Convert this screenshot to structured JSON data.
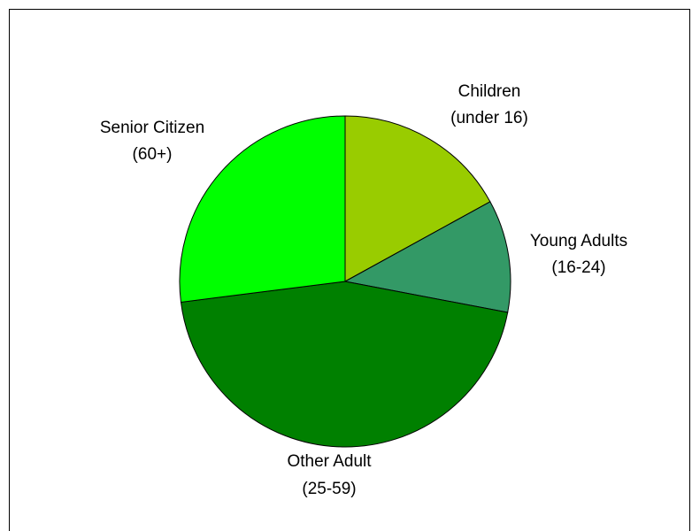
{
  "chart_data": {
    "type": "pie",
    "title": "",
    "start_angle_deg": 0,
    "direction": "clockwise",
    "slices": [
      {
        "label_line1": "Children",
        "label_line2": "(under 16)",
        "value": 17,
        "color": "#99cc00"
      },
      {
        "label_line1": "Young Adults",
        "label_line2": "(16-24)",
        "value": 11,
        "color": "#339966"
      },
      {
        "label_line1": "Other Adult",
        "label_line2": "(25-59)",
        "value": 45,
        "color": "#008000"
      },
      {
        "label_line1": "Senior Citizen",
        "label_line2": "(60+)",
        "value": 27,
        "color": "#00ff00"
      }
    ],
    "legend": false
  }
}
